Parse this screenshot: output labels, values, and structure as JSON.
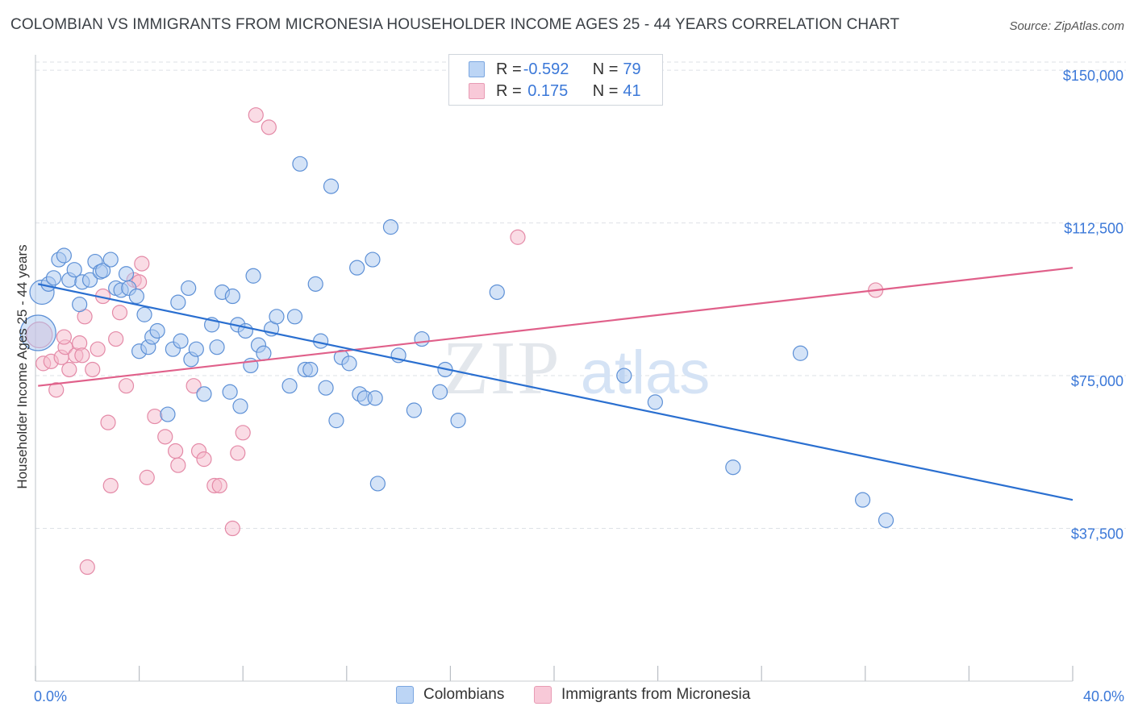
{
  "title": "COLOMBIAN VS IMMIGRANTS FROM MICRONESIA HOUSEHOLDER INCOME AGES 25 - 44 YEARS CORRELATION CHART",
  "source": "Source: ZipAtlas.com",
  "watermark": {
    "zip": "ZIP",
    "atlas": "atlas"
  },
  "legend": {
    "rows": [
      {
        "r_label": "R = ",
        "r_value": "-0.592",
        "n_label": "N = ",
        "n_value": "79"
      },
      {
        "r_label": "R = ",
        "r_value": " 0.175",
        "n_label": "N = ",
        "n_value": "41"
      }
    ]
  },
  "bottom_legend": {
    "s1": "Colombians",
    "s2": "Immigrants from Micronesia"
  },
  "colors": {
    "blue_fill": "#a9c8f0",
    "blue_stroke": "#5d90d6",
    "blue_line": "#2a6fd0",
    "pink_fill": "#f6b9cc",
    "pink_stroke": "#e48aa7",
    "pink_line": "#e0608a",
    "tick_text": "#3b78d8",
    "grid": "#dde1e6"
  },
  "chart_data": {
    "type": "scatter",
    "title": "COLOMBIAN VS IMMIGRANTS FROM MICRONESIA HOUSEHOLDER INCOME AGES 25 - 44 YEARS CORRELATION CHART",
    "xlabel": "",
    "ylabel": "Householder Income Ages 25 - 44 years",
    "xlim": [
      0,
      40
    ],
    "ylim": [
      0,
      152000
    ],
    "x_tick_labels": [
      "0.0%",
      "40.0%"
    ],
    "y_ticks": [
      {
        "value": 37500,
        "label": "$37,500"
      },
      {
        "value": 75000,
        "label": "$75,000"
      },
      {
        "value": 112500,
        "label": "$112,500"
      },
      {
        "value": 150000,
        "label": "$150,000"
      }
    ],
    "grid": true,
    "legend_position": "top-center",
    "series": [
      {
        "name": "Colombians",
        "color": "#5d90d6",
        "points": [
          [
            0.1,
            85500
          ],
          [
            0.25,
            95500
          ],
          [
            0.5,
            97500
          ],
          [
            0.7,
            99000
          ],
          [
            0.9,
            103500
          ],
          [
            1.1,
            104500
          ],
          [
            1.3,
            98500
          ],
          [
            1.5,
            101000
          ],
          [
            1.7,
            92500
          ],
          [
            1.8,
            98000
          ],
          [
            2.1,
            98500
          ],
          [
            2.3,
            103000
          ],
          [
            2.5,
            100500
          ],
          [
            2.6,
            100800
          ],
          [
            2.9,
            103500
          ],
          [
            3.1,
            96500
          ],
          [
            3.3,
            96000
          ],
          [
            3.5,
            100000
          ],
          [
            3.6,
            96500
          ],
          [
            3.9,
            94500
          ],
          [
            4.0,
            81000
          ],
          [
            4.2,
            90000
          ],
          [
            4.35,
            82000
          ],
          [
            4.5,
            84500
          ],
          [
            4.7,
            86000
          ],
          [
            5.1,
            65500
          ],
          [
            5.3,
            81500
          ],
          [
            5.5,
            93000
          ],
          [
            5.6,
            83500
          ],
          [
            5.9,
            96500
          ],
          [
            6.0,
            79000
          ],
          [
            6.2,
            81500
          ],
          [
            6.5,
            70500
          ],
          [
            6.8,
            87500
          ],
          [
            7.0,
            82000
          ],
          [
            7.2,
            95500
          ],
          [
            7.5,
            71000
          ],
          [
            7.6,
            94500
          ],
          [
            7.8,
            87500
          ],
          [
            7.9,
            67500
          ],
          [
            8.1,
            86000
          ],
          [
            8.3,
            77500
          ],
          [
            8.4,
            99500
          ],
          [
            8.6,
            82500
          ],
          [
            8.8,
            80500
          ],
          [
            9.1,
            86500
          ],
          [
            9.3,
            89500
          ],
          [
            9.8,
            72500
          ],
          [
            10.0,
            89500
          ],
          [
            10.4,
            76500
          ],
          [
            10.6,
            76500
          ],
          [
            10.8,
            97500
          ],
          [
            11.0,
            83500
          ],
          [
            11.2,
            72000
          ],
          [
            11.6,
            64000
          ],
          [
            11.8,
            79500
          ],
          [
            12.1,
            78000
          ],
          [
            12.4,
            101500
          ],
          [
            12.5,
            70500
          ],
          [
            12.7,
            69500
          ],
          [
            13.1,
            69500
          ],
          [
            13.0,
            103500
          ],
          [
            13.2,
            48500
          ],
          [
            14.0,
            80000
          ],
          [
            13.7,
            111500
          ],
          [
            14.6,
            66500
          ],
          [
            14.9,
            84000
          ],
          [
            15.6,
            71000
          ],
          [
            15.8,
            76500
          ],
          [
            16.3,
            64000
          ],
          [
            10.2,
            127000
          ],
          [
            11.4,
            121500
          ],
          [
            17.8,
            95500
          ],
          [
            22.7,
            75000
          ],
          [
            23.9,
            68500
          ],
          [
            29.5,
            80500
          ],
          [
            26.9,
            52500
          ],
          [
            31.9,
            44500
          ],
          [
            32.8,
            39500
          ]
        ]
      },
      {
        "name": "Immigrants from Micronesia",
        "color": "#e48aa7",
        "points": [
          [
            0.15,
            85000
          ],
          [
            0.3,
            78000
          ],
          [
            0.6,
            78500
          ],
          [
            0.8,
            71500
          ],
          [
            1.0,
            79500
          ],
          [
            1.15,
            82000
          ],
          [
            1.1,
            84500
          ],
          [
            1.3,
            76500
          ],
          [
            1.55,
            80000
          ],
          [
            1.7,
            83000
          ],
          [
            1.8,
            80000
          ],
          [
            1.9,
            89500
          ],
          [
            2.2,
            76500
          ],
          [
            2.4,
            81500
          ],
          [
            2.6,
            94500
          ],
          [
            2.8,
            63500
          ],
          [
            2.9,
            48000
          ],
          [
            3.1,
            84000
          ],
          [
            3.25,
            90500
          ],
          [
            3.5,
            72500
          ],
          [
            3.8,
            98500
          ],
          [
            4.0,
            98000
          ],
          [
            4.1,
            102500
          ],
          [
            4.3,
            50000
          ],
          [
            4.6,
            65000
          ],
          [
            5.0,
            60000
          ],
          [
            5.4,
            56500
          ],
          [
            5.5,
            53000
          ],
          [
            6.1,
            72500
          ],
          [
            6.3,
            56500
          ],
          [
            6.5,
            54500
          ],
          [
            6.9,
            48000
          ],
          [
            7.1,
            48000
          ],
          [
            7.6,
            37500
          ],
          [
            7.8,
            56000
          ],
          [
            8.0,
            61000
          ],
          [
            2.0,
            28000
          ],
          [
            8.5,
            139000
          ],
          [
            9.0,
            136000
          ],
          [
            18.6,
            109000
          ],
          [
            32.4,
            96000
          ]
        ]
      }
    ],
    "trendlines": [
      {
        "series": "Colombians",
        "x": [
          0.1,
          40
        ],
        "y": [
          97500,
          44500
        ]
      },
      {
        "series": "Immigrants from Micronesia",
        "x": [
          0.1,
          40
        ],
        "y": [
          72500,
          101500
        ]
      }
    ]
  }
}
